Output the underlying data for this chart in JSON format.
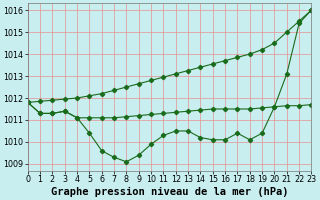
{
  "x": [
    0,
    1,
    2,
    3,
    4,
    5,
    6,
    7,
    8,
    9,
    10,
    11,
    12,
    13,
    14,
    15,
    16,
    17,
    18,
    19,
    20,
    21,
    22,
    23
  ],
  "line_dip": [
    1011.8,
    1011.3,
    1011.3,
    1011.4,
    1011.1,
    1010.4,
    1009.6,
    1009.3,
    1009.1,
    1009.4,
    1009.9,
    1010.3,
    1010.5,
    1010.5,
    1010.2,
    1010.1,
    1010.1,
    1010.4,
    1010.1,
    1010.4,
    1011.6,
    1013.1,
    1015.4,
    1016.0
  ],
  "line_rise": [
    1011.8,
    1011.85,
    1011.9,
    1011.95,
    1012.0,
    1012.1,
    1012.2,
    1012.35,
    1012.5,
    1012.65,
    1012.8,
    1012.95,
    1013.1,
    1013.25,
    1013.4,
    1013.55,
    1013.7,
    1013.85,
    1014.0,
    1014.2,
    1014.5,
    1015.0,
    1015.5,
    1016.0
  ],
  "line_flat": [
    1011.8,
    1011.3,
    1011.3,
    1011.4,
    1011.1,
    1011.1,
    1011.1,
    1011.1,
    1011.15,
    1011.2,
    1011.25,
    1011.3,
    1011.35,
    1011.4,
    1011.45,
    1011.5,
    1011.5,
    1011.5,
    1011.5,
    1011.55,
    1011.6,
    1011.65,
    1011.65,
    1011.7
  ],
  "title": "Graphe pression niveau de la mer (hPa)",
  "xlim": [
    0,
    23
  ],
  "ylim": [
    1008.7,
    1016.3
  ],
  "yticks": [
    1009,
    1010,
    1011,
    1012,
    1013,
    1014,
    1015,
    1016
  ],
  "xticks": [
    0,
    1,
    2,
    3,
    4,
    5,
    6,
    7,
    8,
    9,
    10,
    11,
    12,
    13,
    14,
    15,
    16,
    17,
    18,
    19,
    20,
    21,
    22,
    23
  ],
  "bg_color": "#c8eef0",
  "line_color": "#1a6b1a",
  "grid_color": "#e89090",
  "title_fontsize": 7.5,
  "tick_fontsize": 5.8,
  "figwidth": 3.2,
  "figheight": 2.0,
  "dpi": 100
}
